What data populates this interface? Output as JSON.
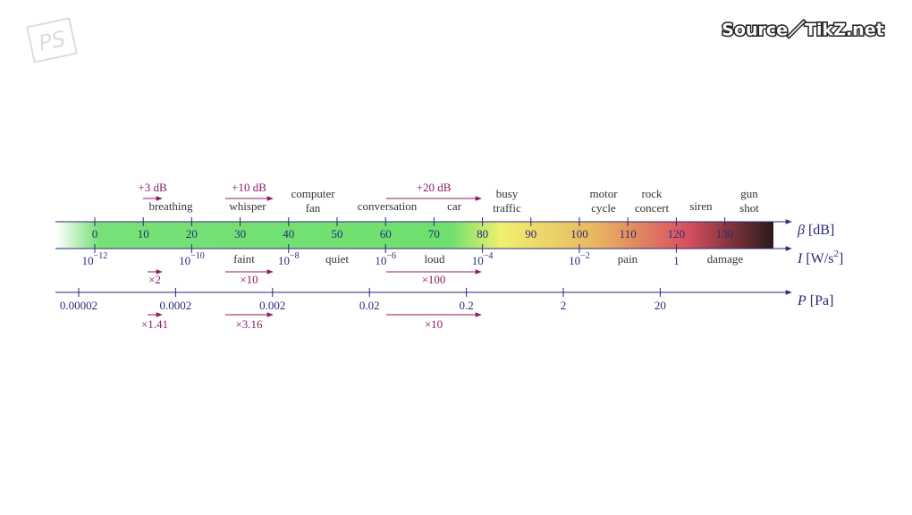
{
  "watermark": {
    "logo": "PS",
    "source": "Source／TikZ.net"
  },
  "decibel": {
    "label": {
      "symbol": "β",
      "unit": "[dB]"
    },
    "ticks": [
      0,
      10,
      20,
      30,
      40,
      50,
      60,
      70,
      80,
      90,
      100,
      110,
      120,
      130
    ]
  },
  "intensity": {
    "label": {
      "symbol": "I",
      "unit": "[W/s",
      "exp": "2",
      "close": "]"
    },
    "ticks": [
      {
        "base": "10",
        "exp": "−12"
      },
      {
        "base": "10",
        "exp": "−10"
      },
      {
        "base": "10",
        "exp": "−8"
      },
      {
        "base": "10",
        "exp": "−6"
      },
      {
        "base": "10",
        "exp": "−4"
      },
      {
        "base": "10",
        "exp": "−2"
      },
      {
        "base": "1"
      }
    ],
    "words": [
      "faint",
      "quiet",
      "loud",
      "pain",
      "damage"
    ],
    "arrows": [
      "×2",
      "×10",
      "×100"
    ]
  },
  "pressure": {
    "label": {
      "symbol": "P",
      "unit": "[Pa]"
    },
    "ticks": [
      "0.00002",
      "0.0002",
      "0.002",
      "0.02",
      "0.2",
      "2",
      "20"
    ],
    "arrows": [
      "×1.41",
      "×3.16",
      "×10"
    ]
  },
  "steps": [
    "+3 dB",
    "+10 dB",
    "+20 dB"
  ],
  "sources": [
    {
      "lines": [
        "breathing"
      ]
    },
    {
      "lines": [
        "whisper"
      ]
    },
    {
      "lines": [
        "computer",
        "fan"
      ]
    },
    {
      "lines": [
        "conversation"
      ]
    },
    {
      "lines": [
        "car"
      ]
    },
    {
      "lines": [
        "busy",
        "traffic"
      ]
    },
    {
      "lines": [
        "motor",
        "cycle"
      ]
    },
    {
      "lines": [
        "rock",
        "concert"
      ]
    },
    {
      "lines": [
        "siren"
      ]
    },
    {
      "lines": [
        "gun",
        "shot"
      ]
    }
  ]
}
